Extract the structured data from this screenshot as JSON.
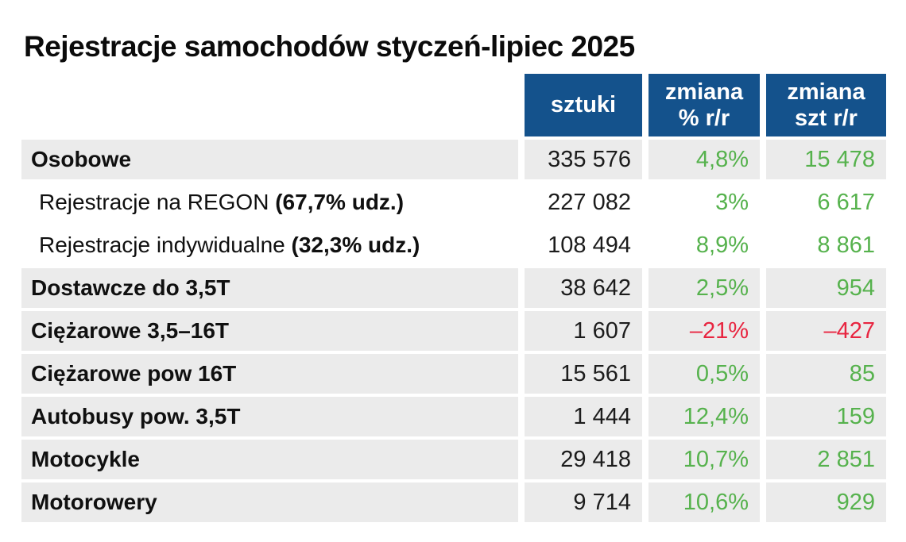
{
  "title": "Rejestracje samochodów styczeń-lipiec 2025",
  "theme": {
    "header_bg": "#14528c",
    "row_bg": "#ebebeb",
    "positive": "#56b24d",
    "negative": "#e82540"
  },
  "table": {
    "columns": [
      {
        "line1": "sztuki",
        "line2": ""
      },
      {
        "line1": "zmiana",
        "line2": "% r/r"
      },
      {
        "line1": "zmiana",
        "line2": "szt r/r"
      }
    ],
    "rows": [
      {
        "label_bold": "Osobowe",
        "sztuki": "335 576",
        "pct": "4,8%",
        "szt": "15 478"
      },
      {
        "label": "Rejestracje na REGON ",
        "label_bold": "(67,7% udz.)",
        "sztuki": "227 082",
        "pct": "3%",
        "szt": "6 617"
      },
      {
        "label": "Rejestracje indywidualne ",
        "label_bold": "(32,3% udz.)",
        "sztuki": "108 494",
        "pct": "8,9%",
        "szt": "8 861"
      },
      {
        "label_bold": "Dostawcze do 3,5T",
        "sztuki": "38 642",
        "pct": "2,5%",
        "szt": "954"
      },
      {
        "label_bold": "Ciężarowe 3,5–16T",
        "sztuki": "1 607",
        "pct": "–21%",
        "szt": "–427"
      },
      {
        "label_bold": "Ciężarowe pow 16T",
        "sztuki": "15 561",
        "pct": "0,5%",
        "szt": "85"
      },
      {
        "label_bold": "Autobusy pow. 3,5T",
        "sztuki": "1 444",
        "pct": "12,4%",
        "szt": "159"
      },
      {
        "label_bold": "Motocykle",
        "sztuki": "29 418",
        "pct": "10,7%",
        "szt": "2 851"
      },
      {
        "label_bold": "Motorowery",
        "sztuki": "9 714",
        "pct": "10,6%",
        "szt": "929"
      }
    ]
  },
  "chart_data": {
    "type": "table",
    "title": "Rejestracje samochodów styczeń-lipiec 2025",
    "columns": [
      "sztuki",
      "zmiana % r/r",
      "zmiana szt r/r"
    ],
    "rows": [
      {
        "category": "Osobowe",
        "sztuki": 335576,
        "zmiana_pct_rr": 4.8,
        "zmiana_szt_rr": 15478
      },
      {
        "category": "Rejestracje na REGON (67,7% udz.)",
        "sztuki": 227082,
        "zmiana_pct_rr": 3.0,
        "zmiana_szt_rr": 6617
      },
      {
        "category": "Rejestracje indywidualne (32,3% udz.)",
        "sztuki": 108494,
        "zmiana_pct_rr": 8.9,
        "zmiana_szt_rr": 8861
      },
      {
        "category": "Dostawcze do 3,5T",
        "sztuki": 38642,
        "zmiana_pct_rr": 2.5,
        "zmiana_szt_rr": 954
      },
      {
        "category": "Ciężarowe 3,5–16T",
        "sztuki": 1607,
        "zmiana_pct_rr": -21.0,
        "zmiana_szt_rr": -427
      },
      {
        "category": "Ciężarowe pow 16T",
        "sztuki": 15561,
        "zmiana_pct_rr": 0.5,
        "zmiana_szt_rr": 85
      },
      {
        "category": "Autobusy pow. 3,5T",
        "sztuki": 1444,
        "zmiana_pct_rr": 12.4,
        "zmiana_szt_rr": 159
      },
      {
        "category": "Motocykle",
        "sztuki": 29418,
        "zmiana_pct_rr": 10.7,
        "zmiana_szt_rr": 2851
      },
      {
        "category": "Motorowery",
        "sztuki": 9714,
        "zmiana_pct_rr": 10.6,
        "zmiana_szt_rr": 929
      }
    ]
  }
}
